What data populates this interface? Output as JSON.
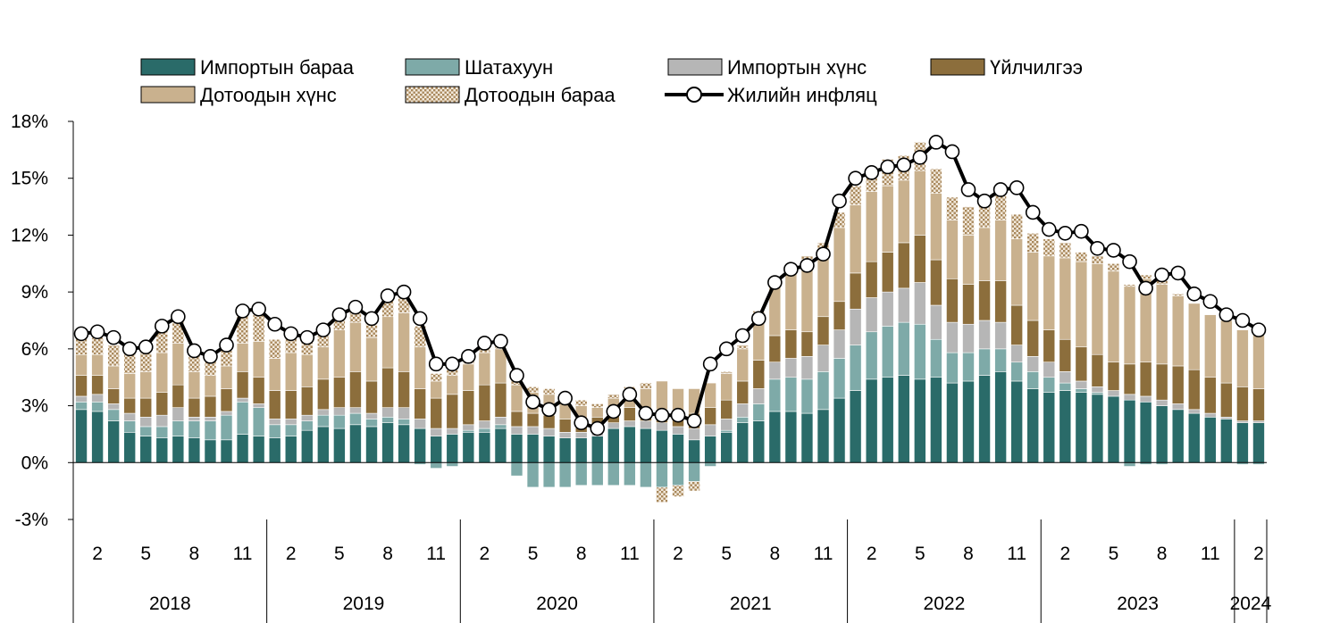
{
  "chart_data": {
    "type": "bar",
    "stacked": true,
    "title": "",
    "xlabel": "",
    "ylabel": "",
    "y_unit": "%",
    "ylim": [
      -3,
      18
    ],
    "yticks": [
      -3,
      0,
      3,
      6,
      9,
      12,
      15,
      18
    ],
    "ytick_labels": [
      "-3%",
      "0%",
      "3%",
      "6%",
      "9%",
      "12%",
      "15%",
      "18%"
    ],
    "grid": false,
    "legend_position": "top",
    "months": [
      1,
      2,
      3,
      4,
      5,
      6,
      7,
      8,
      9,
      10,
      11,
      12,
      1,
      2,
      3,
      4,
      5,
      6,
      7,
      8,
      9,
      10,
      11,
      12,
      1,
      2,
      3,
      4,
      5,
      6,
      7,
      8,
      9,
      10,
      11,
      12,
      1,
      2,
      3,
      4,
      5,
      6,
      7,
      8,
      9,
      10,
      11,
      12,
      1,
      2,
      3,
      4,
      5,
      6,
      7,
      8,
      9,
      10,
      11,
      12,
      1,
      2,
      3,
      4,
      5,
      6,
      7,
      8,
      9,
      10,
      11,
      12,
      1,
      2
    ],
    "month_labels": [
      "2",
      "5",
      "8",
      "11"
    ],
    "year_labels": [
      "2018",
      "2019",
      "2020",
      "2021",
      "2022",
      "2023",
      "2024"
    ],
    "year_months": [
      12,
      12,
      12,
      12,
      12,
      12,
      2
    ],
    "series": [
      {
        "name": "Импортын бараа",
        "color": "#2a6b69",
        "pattern": "solid",
        "values": [
          2.8,
          2.7,
          2.2,
          1.6,
          1.4,
          1.3,
          1.4,
          1.3,
          1.2,
          1.2,
          1.5,
          1.4,
          1.3,
          1.4,
          1.7,
          1.9,
          1.8,
          2.0,
          1.9,
          2.1,
          2.0,
          1.8,
          1.4,
          1.5,
          1.6,
          1.6,
          1.8,
          1.5,
          1.5,
          1.4,
          1.3,
          1.3,
          1.4,
          1.8,
          1.9,
          1.8,
          1.7,
          1.5,
          1.2,
          1.4,
          1.6,
          2.1,
          2.2,
          2.7,
          2.7,
          2.6,
          2.8,
          3.4,
          3.8,
          4.4,
          4.5,
          4.6,
          4.4,
          4.5,
          4.2,
          4.3,
          4.6,
          4.8,
          4.3,
          3.9,
          3.7,
          3.8,
          3.7,
          3.6,
          3.5,
          3.3,
          3.2,
          3.0,
          2.8,
          2.6,
          2.4,
          2.3,
          2.1,
          2.1
        ]
      },
      {
        "name": "Шатахуун",
        "color": "#7eaaa8",
        "pattern": "solid",
        "values": [
          0.4,
          0.5,
          0.6,
          0.6,
          0.5,
          0.6,
          0.8,
          0.9,
          1.0,
          1.3,
          1.7,
          1.5,
          0.7,
          0.6,
          0.5,
          0.6,
          0.7,
          0.6,
          0.4,
          0.3,
          0.3,
          -0.1,
          -0.3,
          -0.2,
          0.1,
          0.2,
          0.2,
          -0.7,
          -1.3,
          -1.3,
          -1.3,
          -1.2,
          -1.2,
          -1.2,
          -1.2,
          -1.3,
          -1.3,
          -1.2,
          -1.0,
          -0.2,
          0.1,
          0.3,
          0.9,
          1.7,
          1.8,
          1.8,
          2.0,
          2.1,
          2.4,
          2.5,
          2.7,
          2.8,
          2.9,
          2.0,
          1.6,
          1.5,
          1.4,
          1.2,
          1.0,
          0.9,
          0.8,
          0.4,
          0.2,
          0.1,
          0.0,
          -0.2,
          -0.1,
          -0.1,
          0.0,
          0.0,
          0.0,
          0.0,
          -0.1,
          -0.1
        ]
      },
      {
        "name": "Импортын хүнс",
        "color": "#b6b6b6",
        "pattern": "solid",
        "values": [
          0.3,
          0.4,
          0.3,
          0.4,
          0.5,
          0.6,
          0.7,
          0.2,
          0.2,
          0.2,
          0.2,
          0.2,
          0.3,
          0.3,
          0.3,
          0.3,
          0.4,
          0.3,
          0.3,
          0.5,
          0.6,
          0.5,
          0.4,
          0.3,
          0.3,
          0.4,
          0.4,
          0.4,
          0.4,
          0.4,
          0.3,
          0.3,
          0.3,
          0.3,
          0.3,
          0.4,
          0.4,
          0.4,
          0.6,
          0.6,
          0.6,
          0.7,
          0.8,
          0.9,
          1.0,
          1.2,
          1.4,
          1.5,
          1.9,
          1.8,
          1.8,
          1.8,
          2.2,
          1.8,
          1.6,
          1.5,
          1.5,
          1.4,
          0.9,
          0.8,
          0.8,
          0.6,
          0.4,
          0.3,
          0.3,
          0.3,
          0.3,
          0.3,
          0.3,
          0.2,
          0.2,
          0.1,
          0.1,
          0.1
        ]
      },
      {
        "name": "Үйлчилгээ",
        "color": "#8c6e3c",
        "pattern": "solid",
        "values": [
          1.1,
          1.0,
          0.8,
          0.8,
          1.0,
          1.2,
          1.2,
          1.0,
          1.1,
          1.2,
          1.4,
          1.4,
          1.5,
          1.5,
          1.5,
          1.6,
          1.6,
          1.9,
          1.7,
          2.1,
          1.9,
          1.6,
          1.6,
          1.8,
          1.8,
          1.9,
          1.8,
          0.8,
          0.7,
          0.7,
          0.7,
          0.7,
          0.7,
          0.7,
          0.7,
          0.6,
          0.7,
          0.7,
          0.8,
          0.9,
          1.0,
          1.2,
          1.5,
          1.4,
          1.5,
          1.3,
          1.5,
          1.5,
          1.9,
          1.9,
          2.1,
          2.4,
          2.5,
          2.4,
          2.3,
          2.1,
          2.1,
          2.2,
          2.1,
          1.9,
          1.7,
          1.7,
          1.8,
          1.7,
          1.5,
          1.6,
          1.8,
          1.9,
          2.0,
          2.1,
          1.9,
          1.8,
          1.8,
          1.7
        ]
      },
      {
        "name": "Дотоодын хүнс",
        "color": "#c9b18e",
        "pattern": "solid",
        "values": [
          1.1,
          1.1,
          1.2,
          1.3,
          1.4,
          2.1,
          2.2,
          1.4,
          1.1,
          1.2,
          1.5,
          1.9,
          1.7,
          2.0,
          1.7,
          1.7,
          2.5,
          2.6,
          2.3,
          2.7,
          3.1,
          2.2,
          0.9,
          1.0,
          1.4,
          1.7,
          1.8,
          1.4,
          1.1,
          1.1,
          0.9,
          0.7,
          0.5,
          0.6,
          0.8,
          1.1,
          1.5,
          1.3,
          1.3,
          1.3,
          1.4,
          1.7,
          2.4,
          2.7,
          3.1,
          3.8,
          3.6,
          3.9,
          3.6,
          3.7,
          3.5,
          3.3,
          3.4,
          3.5,
          3.1,
          2.6,
          2.8,
          3.2,
          3.5,
          3.6,
          3.9,
          4.3,
          4.5,
          4.8,
          4.8,
          4.1,
          4.4,
          4.2,
          3.7,
          3.5,
          3.3,
          3.3,
          3.0,
          2.9
        ]
      },
      {
        "name": "Дотоодын бараа",
        "color": "#d6c5a8",
        "pattern": "dots",
        "values": [
          0.9,
          0.9,
          1.1,
          1.1,
          1.0,
          1.2,
          1.3,
          0.9,
          0.8,
          0.8,
          1.5,
          1.4,
          1.0,
          0.9,
          0.7,
          0.6,
          0.6,
          0.6,
          0.8,
          1.0,
          1.1,
          1.1,
          0.4,
          0.4,
          0.5,
          0.6,
          0.5,
          0.4,
          0.3,
          0.3,
          0.3,
          0.3,
          0.2,
          0.2,
          0.3,
          0.3,
          -0.8,
          -0.6,
          -0.5,
          0.0,
          0.1,
          0.2,
          0.2,
          0.2,
          0.2,
          0.2,
          0.3,
          0.8,
          1.0,
          1.3,
          1.4,
          1.3,
          1.5,
          1.3,
          1.2,
          1.5,
          1.7,
          1.6,
          1.3,
          1.0,
          0.9,
          0.8,
          0.5,
          0.4,
          0.4,
          0.1,
          0.2,
          0.2,
          0.1,
          0.0,
          0.0,
          0.0,
          0.0,
          0.0
        ]
      },
      {
        "name": "Жилийн инфляц",
        "type": "line",
        "color": "#000000",
        "values": [
          6.8,
          6.9,
          6.6,
          6.0,
          6.1,
          7.2,
          7.7,
          5.9,
          5.6,
          6.2,
          8.0,
          8.1,
          7.3,
          6.8,
          6.6,
          7.0,
          7.8,
          8.2,
          7.6,
          8.8,
          9.0,
          7.6,
          5.2,
          5.2,
          5.6,
          6.3,
          6.4,
          4.6,
          3.2,
          2.8,
          3.4,
          2.1,
          1.8,
          2.7,
          3.6,
          2.6,
          2.5,
          2.5,
          2.2,
          5.2,
          6.0,
          6.7,
          7.6,
          9.5,
          10.2,
          10.4,
          11.0,
          13.8,
          15.0,
          15.3,
          15.6,
          15.7,
          16.1,
          16.9,
          16.4,
          14.4,
          13.8,
          14.4,
          14.5,
          13.2,
          12.3,
          12.1,
          12.2,
          11.3,
          11.2,
          10.6,
          9.2,
          9.9,
          10.0,
          8.9,
          8.5,
          7.8,
          7.5,
          7.0
        ]
      }
    ]
  }
}
